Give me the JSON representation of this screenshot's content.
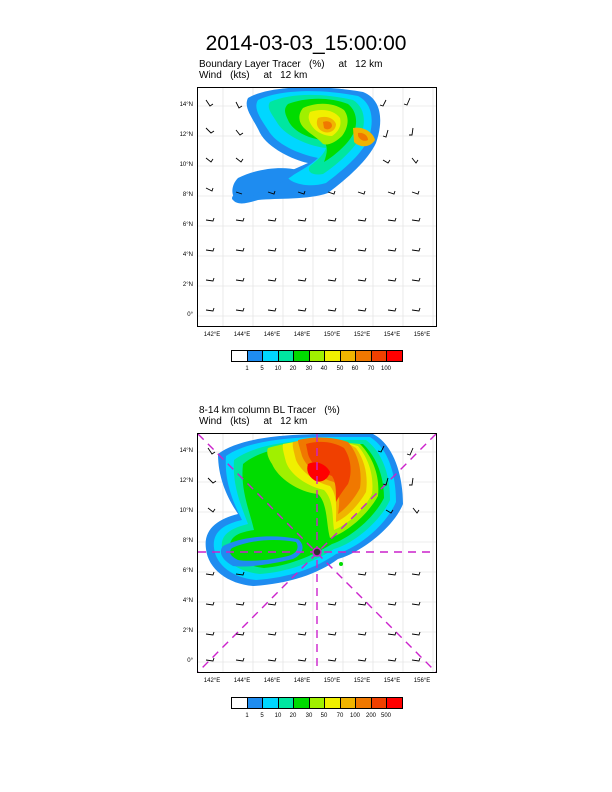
{
  "title": "2014-03-03_15:00:00",
  "panel1": {
    "title_line1": "Boundary Layer Tracer   (%)     at   12 km",
    "title_line2": "Wind   (kts)     at   12 km",
    "colorbar_labels": [
      "1",
      "5",
      "10",
      "20",
      "30",
      "40",
      "50",
      "60",
      "70",
      "100"
    ]
  },
  "panel2": {
    "title_line1": "8-14 km column BL Tracer   (%)",
    "title_line2": "Wind   (kts)     at   12 km",
    "colorbar_labels": [
      "1",
      "5",
      "10",
      "20",
      "30",
      "50",
      "70",
      "100",
      "200",
      "500"
    ]
  },
  "axes": {
    "x_ticks": [
      "142°E",
      "144°E",
      "146°E",
      "148°E",
      "150°E",
      "152°E",
      "154°E",
      "156°E"
    ],
    "y_ticks": [
      "14°N",
      "12°N",
      "10°N",
      "8°N",
      "6°N",
      "4°N",
      "2°N",
      "0°"
    ]
  },
  "colors": {
    "scale": [
      "#ffffff",
      "#1e8cf0",
      "#00d7ff",
      "#00e6a0",
      "#00dc00",
      "#a0f000",
      "#f0f000",
      "#f0b400",
      "#f07800",
      "#f04000",
      "#ff0000"
    ],
    "guide_lines": "#cc22cc"
  }
}
